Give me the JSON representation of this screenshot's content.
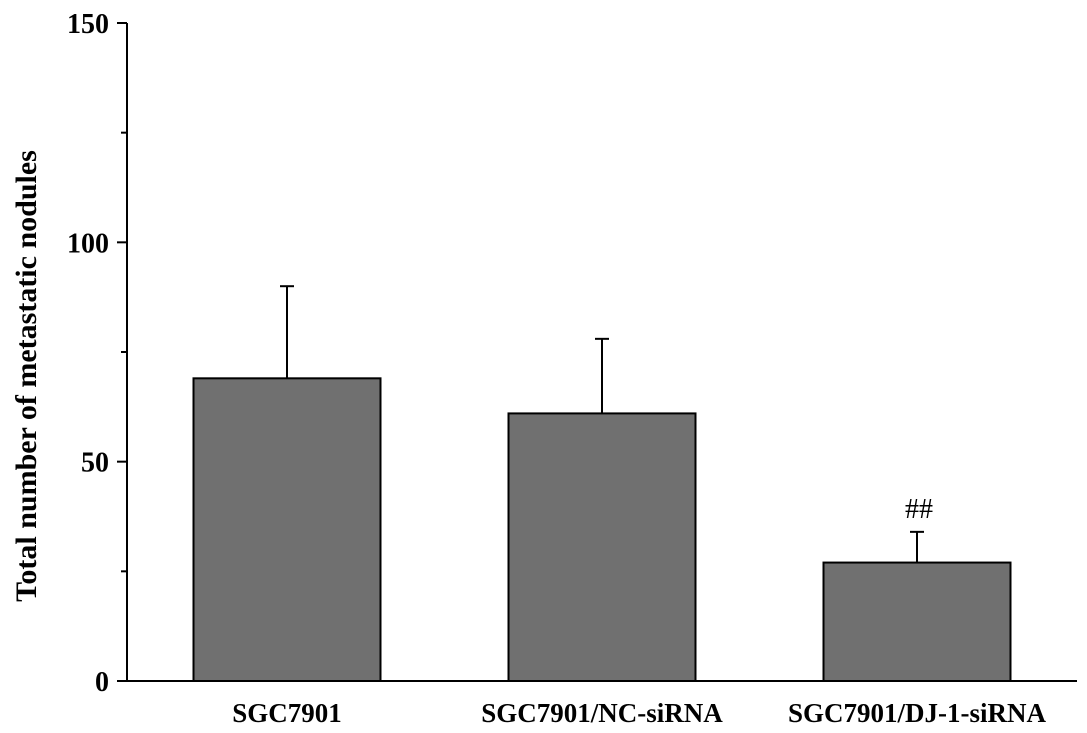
{
  "chart_data": {
    "type": "bar",
    "title": "",
    "xlabel": "",
    "ylabel": "Total number of metastatic nodules",
    "ylim": [
      0,
      150
    ],
    "yticks_major": [
      0,
      50,
      100,
      150
    ],
    "yticks_minor": [
      25,
      75,
      125
    ],
    "categories": [
      "SGC7901",
      "SGC7901/NC-siRNA",
      "SGC7901/DJ-1-siRNA"
    ],
    "values": [
      69,
      61,
      27
    ],
    "error_upper": [
      21,
      17,
      7
    ],
    "annotations": [
      "",
      "",
      "##"
    ],
    "bar_color": "#707070",
    "grid": false,
    "legend": "none"
  }
}
